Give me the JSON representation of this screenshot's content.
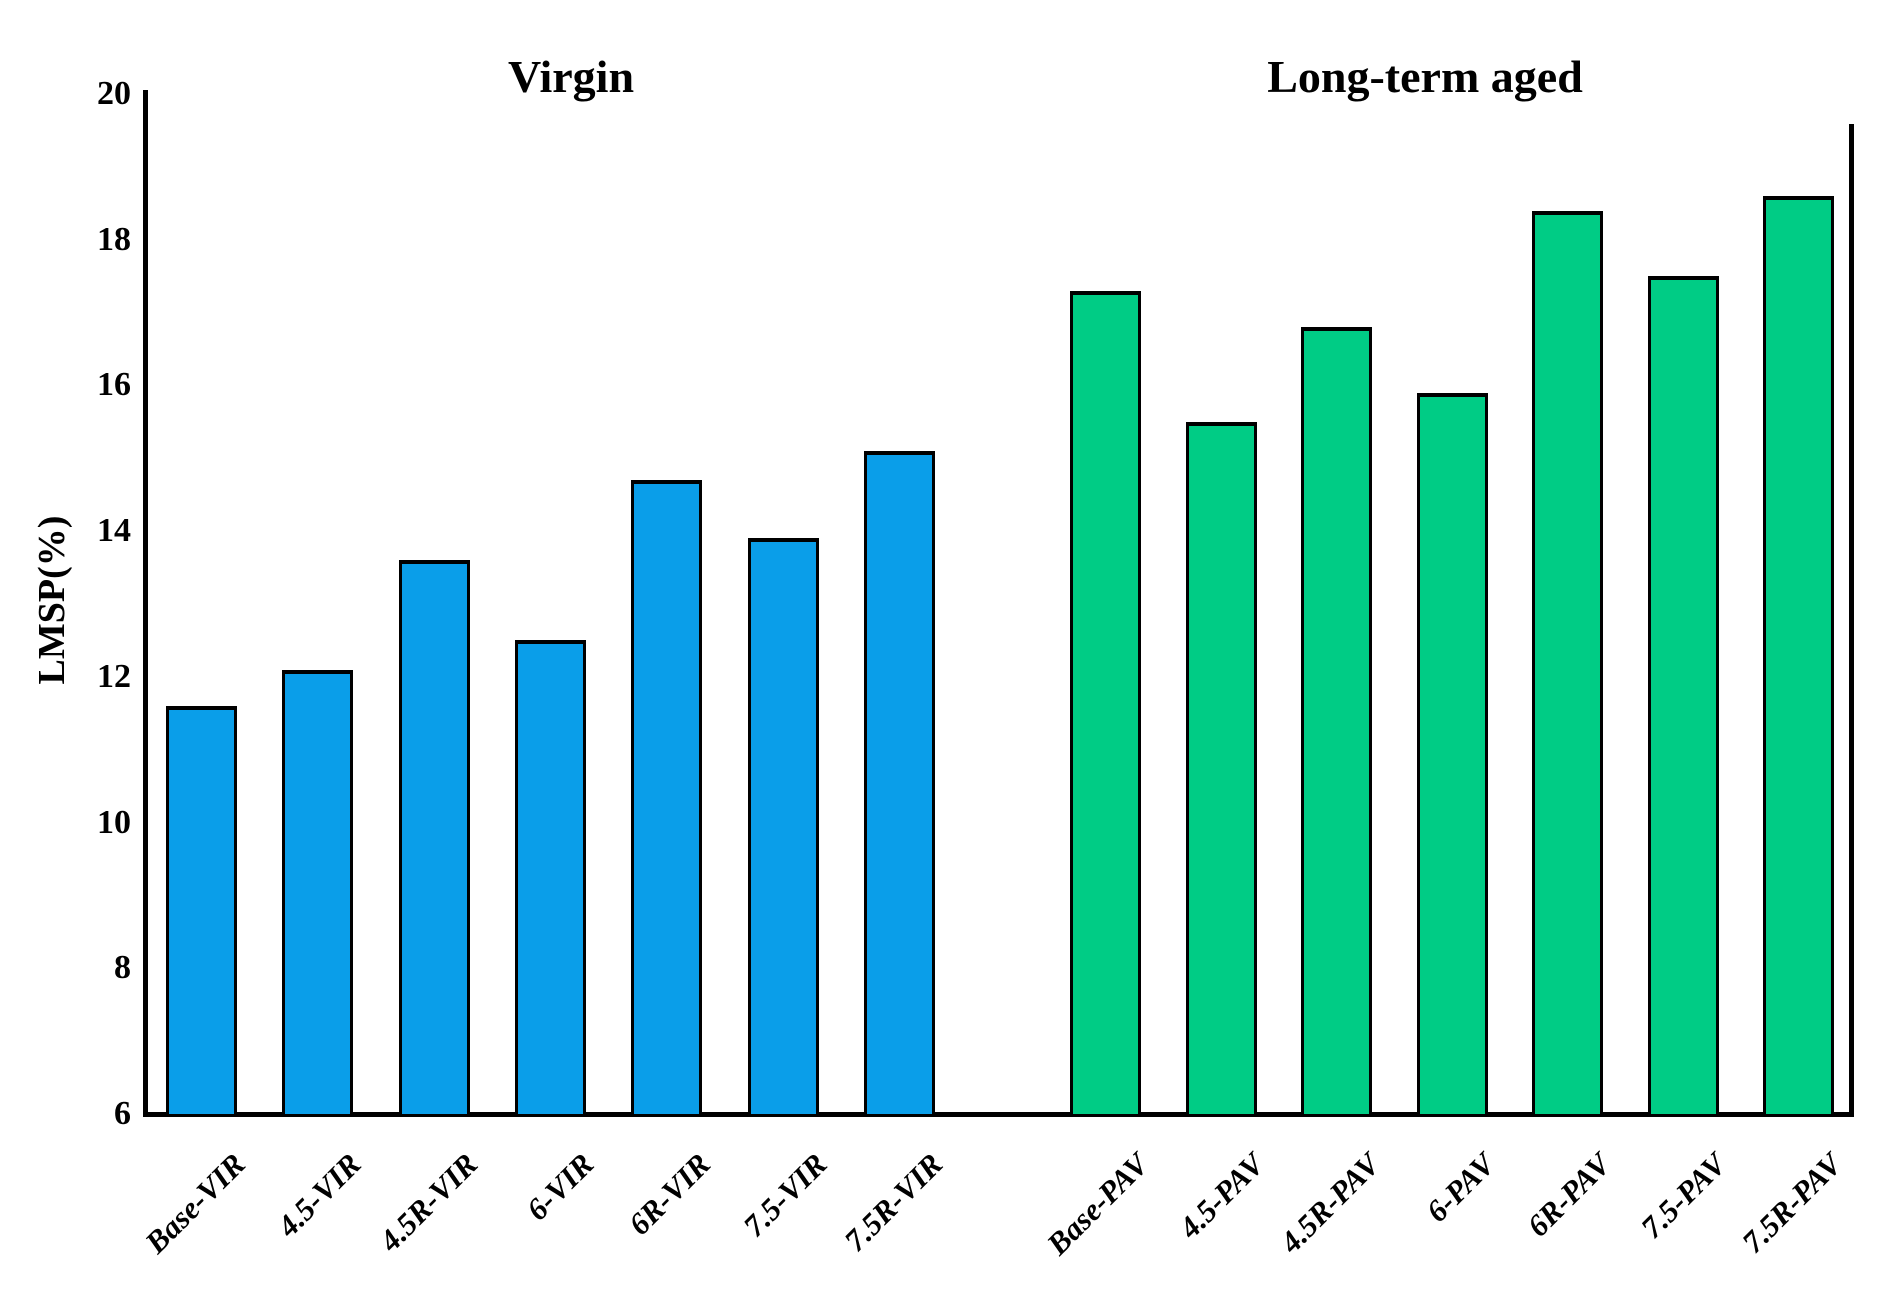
{
  "chart_data": {
    "type": "bar",
    "title": "",
    "xlabel": "",
    "ylabel": "LMSP(%)",
    "ylim": [
      6,
      20
    ],
    "yticks": [
      20,
      18,
      16,
      14,
      12,
      10,
      8,
      6
    ],
    "grid": false,
    "legend_position": "top-bands",
    "groups": [
      {
        "name": "Virgin",
        "band_color": "#00B9F2",
        "bar_color": "#0A9EE9"
      },
      {
        "name": "Long-term aged",
        "band_color": "#00CC85",
        "bar_color": "#00CC85"
      }
    ],
    "categories": [
      "Base-VIR",
      "4.5-VIR",
      "4.5R-VIR",
      "6-VIR",
      "6R-VIR",
      "7.5-VIR",
      "7.5R-VIR",
      "Base-PAV",
      "4.5-PAV",
      "4.5R-PAV",
      "6-PAV",
      "6R-PAV",
      "7.5-PAV",
      "7.5R-PAV"
    ],
    "group_index": [
      0,
      0,
      0,
      0,
      0,
      0,
      0,
      1,
      1,
      1,
      1,
      1,
      1,
      1
    ],
    "values": [
      11.6,
      12.1,
      13.6,
      12.5,
      14.7,
      13.9,
      15.1,
      17.3,
      15.5,
      16.8,
      15.9,
      18.4,
      17.5,
      18.6
    ]
  }
}
